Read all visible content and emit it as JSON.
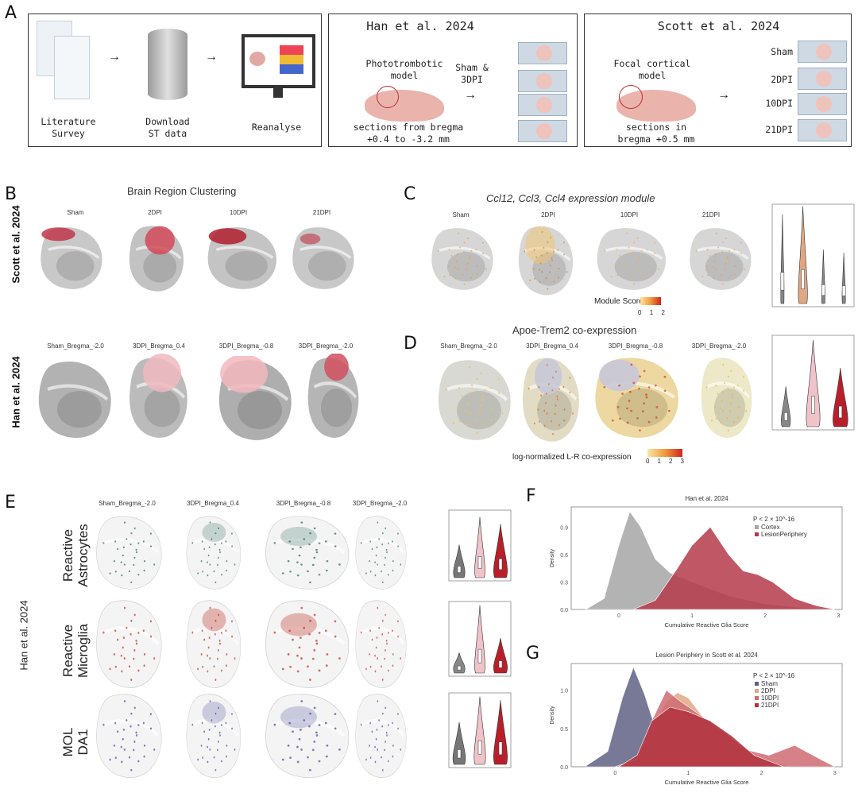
{
  "panels": {
    "a": "A",
    "b": "B",
    "c": "C",
    "d": "D",
    "e": "E",
    "f": "F",
    "g": "G"
  },
  "panel_a": {
    "workflow": [
      "Literature\nSurvey",
      "Download\nST data",
      "Reanalyse"
    ],
    "han": {
      "title": "Han et al. 2024",
      "model": "Phototrombotic\nmodel",
      "arrow_label": "Sham &\n3DPI",
      "sections": "sections from bregma\n+0.4 to -3.2 mm"
    },
    "scott": {
      "title": "Scott et al. 2024",
      "model": "Focal cortical\nmodel",
      "sections": "sections in\nbregma +0.5 mm",
      "conditions": [
        "Sham",
        "2DPI",
        "10DPI",
        "21DPI"
      ]
    }
  },
  "panel_b": {
    "title": "Brain Region Clustering",
    "row_labels": [
      "Scott et al. 2024",
      "Han et al. 2024"
    ],
    "scott_columns": [
      "Sham",
      "2DPI",
      "10DPI",
      "21DPI"
    ],
    "han_columns": [
      "Sham_Bregma_-2.0",
      "3DPI_Bregma_0.4",
      "3DPI_Bregma_-0.8",
      "3DPI_Bregma_-2.0"
    ]
  },
  "panel_c": {
    "title": "Ccl12, Ccl3, Ccl4 expression module",
    "columns": [
      "Sham",
      "2DPI",
      "10DPI",
      "21DPI"
    ],
    "legend_title": "Module Score",
    "legend_ticks": [
      "0",
      "1",
      "2"
    ]
  },
  "panel_d": {
    "title": "Apoe-Trem2 co-expression",
    "columns": [
      "Sham_Bregma_-2.0",
      "3DPI_Bregma_0.4",
      "3DPI_Bregma_-0.8",
      "3DPI_Bregma_-2.0"
    ],
    "legend_title": "log-normalized L-R co-expression",
    "legend_ticks": [
      "0",
      "1",
      "2",
      "3"
    ]
  },
  "panel_e": {
    "side_label": "Han et al. 2024",
    "columns": [
      "Sham_Bregma_-2.0",
      "3DPI_Bregma_0.4",
      "3DPI_Bregma_-0.8",
      "3DPI_Bregma_-2.0"
    ],
    "rows": [
      "Reactive\nAstrocytes",
      "Reactive\nMicroglia",
      "MOL\nDA1"
    ],
    "row_colors": [
      "#2e6b5a",
      "#c0392b",
      "#4a4a9a"
    ]
  },
  "colors": {
    "cortex": "#a6a6a6",
    "lesion": "#b5394a",
    "sham": "#5f6184",
    "dpi2": "#e0a882",
    "dpi10": "#cf6b73",
    "dpi21": "#b2333f",
    "violin_pink": "#efc3c8",
    "violin_red": "#b81f2b"
  },
  "chart_data": [
    {
      "type": "area",
      "title": "Han et al. 2024",
      "xlabel": "Cumulative Reactive Glia Score",
      "ylabel": "Density",
      "annotation": "P < 2 × 10^-16",
      "legend_position": "top-right",
      "xlim": [
        -0.65,
        3.05
      ],
      "ylim": [
        0,
        1.12
      ],
      "xticks": [
        "0",
        "1",
        "2",
        "3"
      ],
      "yticks": [
        "0.0",
        "0.3",
        "0.6",
        "0.9"
      ],
      "series": [
        {
          "name": "Cortex",
          "x": [
            -0.45,
            -0.2,
            0,
            0.15,
            0.3,
            0.5,
            0.7,
            1.0,
            1.5,
            2.0,
            2.5,
            2.9
          ],
          "y": [
            0,
            0.12,
            0.7,
            1.07,
            0.9,
            0.55,
            0.4,
            0.3,
            0.15,
            0.06,
            0.02,
            0
          ]
        },
        {
          "name": "LesionPeriphery",
          "x": [
            0.2,
            0.5,
            0.8,
            1.0,
            1.25,
            1.5,
            1.7,
            1.9,
            2.1,
            2.4,
            2.7,
            2.95
          ],
          "y": [
            0,
            0.1,
            0.45,
            0.7,
            0.9,
            0.6,
            0.42,
            0.38,
            0.3,
            0.12,
            0.04,
            0
          ]
        }
      ]
    },
    {
      "type": "area",
      "title": "Lesion Periphery in Scott et al. 2024",
      "xlabel": "Cumulative Reactive Glia Score",
      "ylabel": "Density",
      "annotation": "P < 2 × 10^-16",
      "legend_position": "top-right",
      "xlim": [
        -0.6,
        3.1
      ],
      "ylim": [
        0,
        1.35
      ],
      "xticks": [
        "0",
        "1",
        "2",
        "3"
      ],
      "yticks": [
        "0.0",
        "0.5",
        "1.0"
      ],
      "series": [
        {
          "name": "Sham",
          "x": [
            -0.4,
            -0.1,
            0.1,
            0.25,
            0.4,
            0.55,
            0.7,
            0.9,
            1.2,
            1.5
          ],
          "y": [
            0.01,
            0.2,
            0.9,
            1.3,
            0.95,
            0.5,
            0.25,
            0.1,
            0.03,
            0
          ]
        },
        {
          "name": "2DPI",
          "x": [
            0,
            0.3,
            0.5,
            0.7,
            0.85,
            1.0,
            1.2,
            1.5,
            1.8,
            2.1,
            2.4
          ],
          "y": [
            0,
            0.1,
            0.5,
            0.85,
            0.97,
            0.9,
            0.65,
            0.45,
            0.2,
            0.08,
            0
          ]
        },
        {
          "name": "10DPI",
          "x": [
            0,
            0.3,
            0.5,
            0.7,
            0.9,
            1.2,
            1.5,
            1.8,
            2.1,
            2.45,
            2.8,
            3.0
          ],
          "y": [
            0,
            0.1,
            0.6,
            1.0,
            0.85,
            0.65,
            0.45,
            0.22,
            0.15,
            0.28,
            0.1,
            0
          ]
        },
        {
          "name": "21DPI",
          "x": [
            0.05,
            0.3,
            0.5,
            0.75,
            1.0,
            1.3,
            1.6,
            1.9,
            2.3
          ],
          "y": [
            0,
            0.15,
            0.6,
            0.78,
            0.72,
            0.6,
            0.4,
            0.15,
            0
          ]
        }
      ]
    }
  ]
}
